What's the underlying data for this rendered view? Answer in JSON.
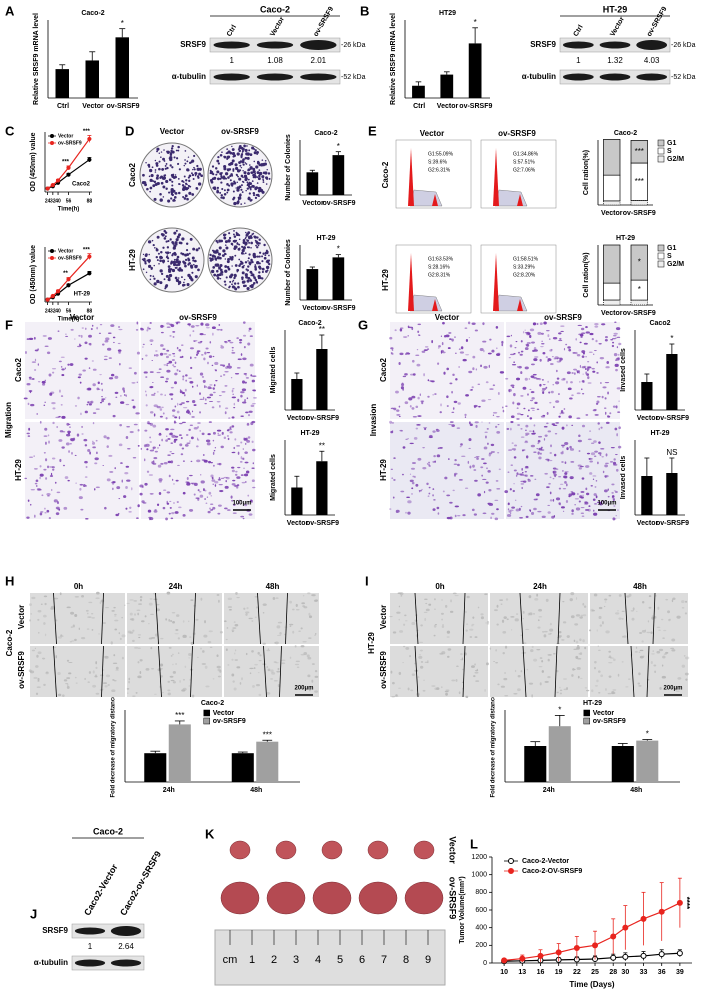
{
  "chart_data": [
    {
      "type": "bar",
      "title": "Caco-2",
      "y_label": "Relative SRSF9 mRNA level",
      "categories": [
        "Ctrl",
        "Vector",
        "ov-SRSF9"
      ],
      "values": [
        1,
        1.3,
        2.1
      ],
      "errors": [
        0.15,
        0.3,
        0.3
      ],
      "color": "#000000",
      "ylim": [
        0,
        2.7
      ],
      "annotations": [
        {
          "text": "*",
          "x": "ov-SRSF9"
        }
      ]
    },
    {
      "type": "bar",
      "title": "HT29",
      "y_label": "Relative SRSF9 mRNA level",
      "categories": [
        "Ctrl",
        "Vector",
        "ov-SRSF9"
      ],
      "values": [
        1.1,
        2.1,
        4.9
      ],
      "errors": [
        0.35,
        0.25,
        1.4
      ],
      "color": "#000000",
      "ylim": [
        0,
        7
      ],
      "annotations": [
        {
          "text": "*",
          "x": "ov-SRSF9"
        }
      ]
    },
    {
      "type": "line",
      "title": "Caco2",
      "x_label": "Time(h)",
      "y_label": "OD (450nm) value",
      "x": [
        24,
        32,
        40,
        56,
        88
      ],
      "xlim": [
        20,
        92
      ],
      "xticks": [
        24,
        32,
        40,
        56,
        88
      ],
      "ylim": [
        0,
        2.6
      ],
      "series": [
        {
          "name": "Vector",
          "color": "#000000",
          "marker": "filled",
          "values": [
            0.15,
            0.25,
            0.4,
            0.75,
            1.4
          ],
          "errors": [
            0.02,
            0.03,
            0.04,
            0.06,
            0.1
          ]
        },
        {
          "name": "ov-SRSF9",
          "color": "#e8251f",
          "marker": "filled",
          "values": [
            0.15,
            0.3,
            0.5,
            1.05,
            2.3
          ],
          "errors": [
            0.02,
            0.03,
            0.05,
            0.08,
            0.15
          ]
        }
      ],
      "annotations": [
        {
          "text": "***",
          "x": 56
        },
        {
          "text": "***",
          "x": 88
        }
      ]
    },
    {
      "type": "line",
      "title": "HT-29",
      "x_label": "Time(h)",
      "y_label": "OD (450nm) value",
      "x": [
        24,
        32,
        40,
        56,
        88
      ],
      "xlim": [
        20,
        92
      ],
      "xticks": [
        24,
        32,
        40,
        56,
        88
      ],
      "ylim": [
        0,
        2.3
      ],
      "series": [
        {
          "name": "Vector",
          "color": "#000000",
          "marker": "filled",
          "values": [
            0.1,
            0.2,
            0.35,
            0.7,
            1.2
          ],
          "errors": [
            0.02,
            0.03,
            0.04,
            0.05,
            0.08
          ]
        },
        {
          "name": "ov-SRSF9",
          "color": "#e8251f",
          "marker": "filled",
          "values": [
            0.1,
            0.25,
            0.45,
            0.95,
            1.9
          ],
          "errors": [
            0.02,
            0.03,
            0.05,
            0.07,
            0.12
          ]
        }
      ],
      "annotations": [
        {
          "text": "**",
          "x": 56
        },
        {
          "text": "***",
          "x": 88
        }
      ]
    },
    {
      "type": "bar",
      "title": "Caco-2",
      "y_label": "Number of Colonies",
      "categories": [
        "Vector",
        "ov-SRSF9"
      ],
      "values": [
        330,
        580
      ],
      "errors": [
        30,
        50
      ],
      "color": "#000000",
      "ylim": [
        0,
        800
      ],
      "annotations": [
        {
          "text": "*",
          "x": "ov-SRSF9"
        }
      ]
    },
    {
      "type": "bar",
      "title": "HT-29",
      "y_label": "Number of Colonies",
      "categories": [
        "Vector",
        "ov-SRSF9"
      ],
      "values": [
        450,
        620
      ],
      "errors": [
        30,
        40
      ],
      "color": "#000000",
      "ylim": [
        0,
        800
      ],
      "annotations": [
        {
          "text": "*",
          "x": "ov-SRSF9"
        }
      ]
    },
    {
      "type": "stacked_bar",
      "title": "Caco-2",
      "y_label": "Cell ration(%)",
      "categories": [
        "Vector",
        "ov-SRSF9"
      ],
      "ylim": [
        0,
        100
      ],
      "series": [
        {
          "name": "G1",
          "color": "#c8c8c8",
          "values": [
            55.09,
            34.86
          ]
        },
        {
          "name": "S",
          "color": "#ffffff",
          "values": [
            39.6,
            57.51
          ]
        },
        {
          "name": "G2/M",
          "color": "#eeeeee",
          "values": [
            6.31,
            7.06
          ]
        }
      ],
      "annotations": [
        {
          "text": "***",
          "x": "ov-SRSF9",
          "series": "G1"
        },
        {
          "text": "***",
          "x": "ov-SRSF9",
          "series": "S"
        }
      ]
    },
    {
      "type": "stacked_bar",
      "title": "HT-29",
      "y_label": "Cell ration(%)",
      "categories": [
        "Vector",
        "ov-SRSF9"
      ],
      "ylim": [
        0,
        100
      ],
      "series": [
        {
          "name": "G1",
          "color": "#c8c8c8",
          "values": [
            63.53,
            58.51
          ]
        },
        {
          "name": "S",
          "color": "#ffffff",
          "values": [
            28.16,
            33.29
          ]
        },
        {
          "name": "G2/M",
          "color": "#eeeeee",
          "values": [
            8.31,
            8.2
          ]
        }
      ],
      "annotations": [
        {
          "text": "*",
          "x": "ov-SRSF9",
          "series": "G1"
        },
        {
          "text": "*",
          "x": "ov-SRSF9",
          "series": "S"
        }
      ]
    },
    {
      "type": "bar",
      "title": "Caco-2",
      "y_label": "Migrated cells",
      "categories": [
        "Vector",
        "ov-SRSF9"
      ],
      "values": [
        62,
        122
      ],
      "errors": [
        12,
        28
      ],
      "color": "#000000",
      "ylim": [
        0,
        160
      ],
      "annotations": [
        {
          "text": "**",
          "x": "ov-SRSF9"
        }
      ]
    },
    {
      "type": "bar",
      "title": "HT-29",
      "y_label": "Migrated cells",
      "categories": [
        "Vector",
        "ov-SRSF9"
      ],
      "values": [
        22,
        43
      ],
      "errors": [
        9,
        8
      ],
      "color": "#000000",
      "ylim": [
        0,
        60
      ],
      "annotations": [
        {
          "text": "**",
          "x": "ov-SRSF9"
        }
      ]
    },
    {
      "type": "bar",
      "title": "Caco2",
      "y_label": "Invased cells",
      "categories": [
        "Vector",
        "ov-SRSF9"
      ],
      "values": [
        14,
        28
      ],
      "errors": [
        4,
        5
      ],
      "color": "#000000",
      "ylim": [
        0,
        40
      ],
      "annotations": [
        {
          "text": "*",
          "x": "ov-SRSF9"
        }
      ]
    },
    {
      "type": "bar",
      "title": "HT-29",
      "y_label": "Invased cells",
      "categories": [
        "Vector",
        "ov-SRSF9"
      ],
      "values": [
        13,
        14
      ],
      "errors": [
        6,
        5
      ],
      "color": "#000000",
      "ylim": [
        0,
        25
      ],
      "annotations": [
        {
          "text": "NS",
          "x": "ov-SRSF9"
        }
      ]
    },
    {
      "type": "bar",
      "title": "Caco-2",
      "y_label": "Fold decrease of migratory distance",
      "categories": [
        "24h",
        "48h"
      ],
      "ylim": [
        0,
        2.5
      ],
      "series": [
        {
          "name": "Vector",
          "color": "#000000",
          "values": [
            1.0,
            1.0
          ],
          "errors": [
            0.07,
            0.04
          ]
        },
        {
          "name": "ov-SRSF9",
          "color": "#a0a0a0",
          "values": [
            2.0,
            1.4
          ],
          "errors": [
            0.12,
            0.05
          ]
        }
      ],
      "annotations": [
        {
          "text": "***",
          "x": "24h",
          "series": "ov-SRSF9"
        },
        {
          "text": "***",
          "x": "48h",
          "series": "ov-SRSF9"
        }
      ]
    },
    {
      "type": "bar",
      "title": "HT-29",
      "y_label": "Fold decrease of migratory distance",
      "categories": [
        "24h",
        "48h"
      ],
      "ylim": [
        0,
        2
      ],
      "series": [
        {
          "name": "Vector",
          "color": "#000000",
          "values": [
            1.0,
            1.0
          ],
          "errors": [
            0.12,
            0.07
          ]
        },
        {
          "name": "ov-SRSF9",
          "color": "#a0a0a0",
          "values": [
            1.55,
            1.15
          ],
          "errors": [
            0.3,
            0.03
          ]
        }
      ],
      "annotations": [
        {
          "text": "*",
          "x": "24h",
          "series": "ov-SRSF9"
        },
        {
          "text": "*",
          "x": "48h",
          "series": "ov-SRSF9"
        }
      ]
    },
    {
      "type": "line",
      "x_label": "Time (Days)",
      "y_label": "Tumor Volume(mm³)",
      "x": [
        10,
        13,
        16,
        19,
        22,
        25,
        28,
        30,
        33,
        36,
        39
      ],
      "xlim": [
        8,
        41
      ],
      "xticks": [
        10,
        13,
        16,
        19,
        22,
        25,
        28,
        30,
        33,
        36,
        39
      ],
      "ylim": [
        0,
        1200
      ],
      "yticks": [
        0,
        200,
        400,
        600,
        800,
        1000,
        1200
      ],
      "series": [
        {
          "name": "Caco-2-Vector",
          "color": "#000000",
          "marker": "open",
          "values": [
            20,
            25,
            30,
            35,
            40,
            45,
            60,
            70,
            80,
            100,
            110
          ],
          "errors": [
            10,
            15,
            20,
            25,
            30,
            35,
            40,
            45,
            50,
            50,
            40
          ]
        },
        {
          "name": "Caco-2-OV-SRSF9",
          "color": "#e8251f",
          "marker": "filled",
          "values": [
            30,
            50,
            80,
            120,
            170,
            200,
            300,
            400,
            500,
            580,
            680
          ],
          "errors": [
            20,
            40,
            70,
            100,
            130,
            160,
            200,
            250,
            300,
            330,
            280
          ]
        }
      ],
      "annotations": [
        {
          "text": "****",
          "x": 39
        }
      ]
    }
  ],
  "figure": {
    "panel_letters": [
      "A",
      "B",
      "C",
      "D",
      "E",
      "F",
      "G",
      "H",
      "I",
      "J",
      "K",
      "L"
    ],
    "blot_a": {
      "cell_line": "Caco-2",
      "lanes": [
        "Ctrl",
        "Vector",
        "ov-SRSF9"
      ],
      "rows": [
        "SRSF9",
        "α-tubulin"
      ],
      "sizes": [
        "-26 kDa",
        "-52 kDa"
      ],
      "quant": [
        1,
        1.08,
        2.01
      ]
    },
    "blot_b": {
      "cell_line": "HT-29",
      "lanes": [
        "Ctrl",
        "Vector",
        "ov-SRSF9"
      ],
      "rows": [
        "SRSF9",
        "α-tubulin"
      ],
      "sizes": [
        "-26 kDa",
        "-52 kDa"
      ],
      "quant": [
        1,
        1.32,
        4.03
      ]
    },
    "colony_d": {
      "columns": [
        "Vector",
        "ov-SRSF9"
      ],
      "rows": [
        "Caco2",
        "HT-29"
      ]
    },
    "flow_e": {
      "columns": [
        "Vector",
        "ov-SRSF9"
      ],
      "rows": [
        "Caco-2",
        "HT-29"
      ],
      "stats": [
        [
          "G1:55.09%",
          "S:39.6%",
          "G2:6.31%"
        ],
        [
          "G1:34.86%",
          "S:57.51%",
          "G2:7.06%"
        ],
        [
          "G1:63.53%",
          "S:28.16%",
          "G2:8.31%"
        ],
        [
          "G1:58.51%",
          "S:33.29%",
          "G2:8.20%"
        ]
      ]
    },
    "migration_f": {
      "assay": "Migration",
      "columns": [
        "Vector",
        "ov-SRSF9"
      ],
      "rows": [
        "Caco2",
        "HT-29"
      ],
      "scale": "100μm"
    },
    "invasion_g": {
      "assay": "Invasion",
      "columns": [
        "Vector",
        "ov-SRSF9"
      ],
      "rows": [
        "Caco2",
        "HT-29"
      ],
      "scale": "100μm"
    },
    "wound_h": {
      "cell_line": "Caco-2",
      "times": [
        "0h",
        "24h",
        "48h"
      ],
      "rows": [
        "Vector",
        "ov-SRSF9"
      ],
      "scale": "200μm"
    },
    "wound_i": {
      "cell_line": "HT-29",
      "times": [
        "0h",
        "24h",
        "48h"
      ],
      "rows": [
        "Vector",
        "ov-SRSF9"
      ],
      "scale": "200μm"
    },
    "blot_j": {
      "cell_line": "Caco-2",
      "lanes": [
        "Caco2-Vector",
        "Caco2-ov-SRSF9"
      ],
      "rows": [
        "SRSF9",
        "α-tubulin"
      ],
      "quant": [
        1,
        2.64
      ]
    },
    "tumor_k": {
      "rows": [
        "Vector",
        "ov-SRSF9"
      ],
      "ruler": [
        "cm",
        "1",
        "2",
        "3",
        "4",
        "5",
        "6",
        "7",
        "8",
        "9"
      ]
    }
  }
}
